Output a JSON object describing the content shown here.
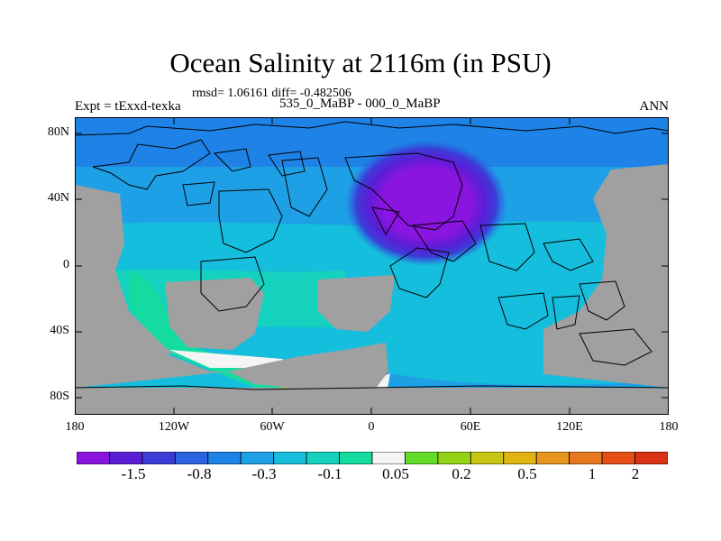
{
  "header": {
    "title": "Ocean Salinity at 2116m (in PSU)",
    "stats": "rmsd= 1.06161 diff= -0.482506",
    "experiment": "Expt = tExxd-texka",
    "comparison": "535_0_MaBP - 000_0_MaBP",
    "season": "ANN"
  },
  "axes": {
    "x_ticks": [
      "180",
      "120W",
      "60W",
      "0",
      "60E",
      "120E",
      "180"
    ],
    "y_ticks": [
      "80N",
      "40N",
      "0",
      "40S",
      "80S"
    ]
  },
  "colorbar": {
    "colors": [
      "#8a14e0",
      "#5a1ed6",
      "#3c3cd8",
      "#2a64e0",
      "#1e82e6",
      "#1ea0e6",
      "#14bedc",
      "#14d2be",
      "#14dca0",
      "#f4f4f4",
      "#64dc28",
      "#96d214",
      "#c8c814",
      "#e1b414",
      "#e6961e",
      "#e6781e",
      "#e65014",
      "#dc3214"
    ],
    "labels": [
      "-1.5",
      "-0.8",
      "-0.3",
      "-0.1",
      "0.05",
      "0.2",
      "0.5",
      "1",
      "2"
    ]
  },
  "map": {
    "land_color": "#a0a0a0",
    "anomaly_center": "40E, 35N"
  }
}
